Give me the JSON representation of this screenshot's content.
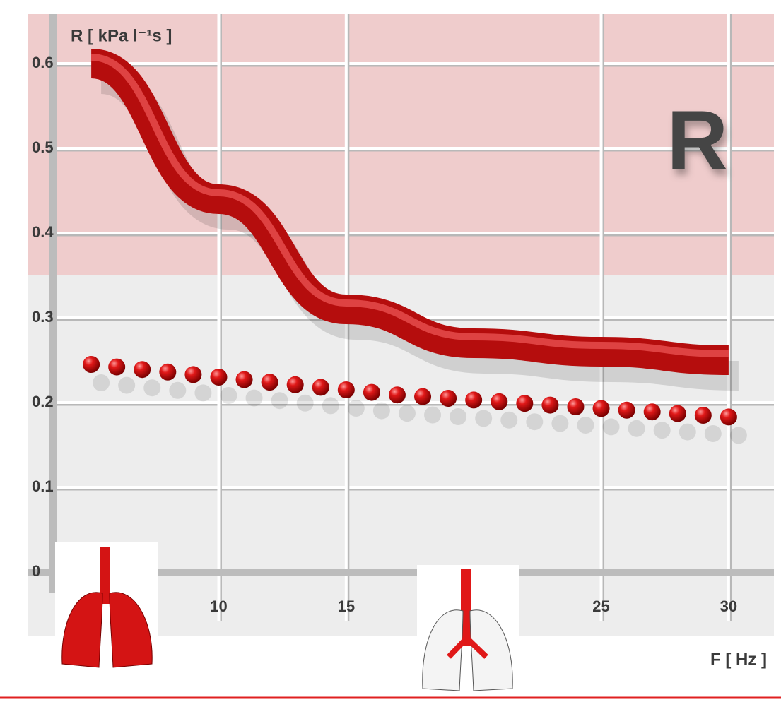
{
  "chart_data": {
    "type": "line",
    "annotation": "R",
    "y_label": "R  [ kPa l⁻¹s ]",
    "x_label": "F  [ Hz ]",
    "xlim": [
      3.5,
      31.5
    ],
    "xticks": [
      10,
      15,
      25,
      30
    ],
    "ylim": [
      0,
      0.65
    ],
    "yticks": [
      0,
      0.1,
      0.2,
      0.3,
      0.4,
      0.5,
      0.6
    ],
    "grid": true,
    "series": [
      {
        "mode": "line",
        "color": "#b50d0d",
        "x": [
          5,
          10,
          15,
          20,
          25,
          30
        ],
        "values": [
          0.6,
          0.44,
          0.31,
          0.27,
          0.26,
          0.25
        ]
      },
      {
        "mode": "markers",
        "color": "#d01010",
        "x": [
          5,
          6,
          7,
          8,
          9,
          10,
          11,
          12,
          13,
          14,
          15,
          16,
          17,
          18,
          19,
          20,
          21,
          22,
          23,
          24,
          25,
          26,
          27,
          28,
          29,
          30
        ],
        "values": [
          0.245,
          0.242,
          0.239,
          0.236,
          0.233,
          0.23,
          0.227,
          0.224,
          0.221,
          0.218,
          0.215,
          0.212,
          0.209,
          0.207,
          0.205,
          0.203,
          0.201,
          0.199,
          0.197,
          0.195,
          0.193,
          0.191,
          0.189,
          0.187,
          0.185,
          0.183
        ]
      }
    ]
  }
}
